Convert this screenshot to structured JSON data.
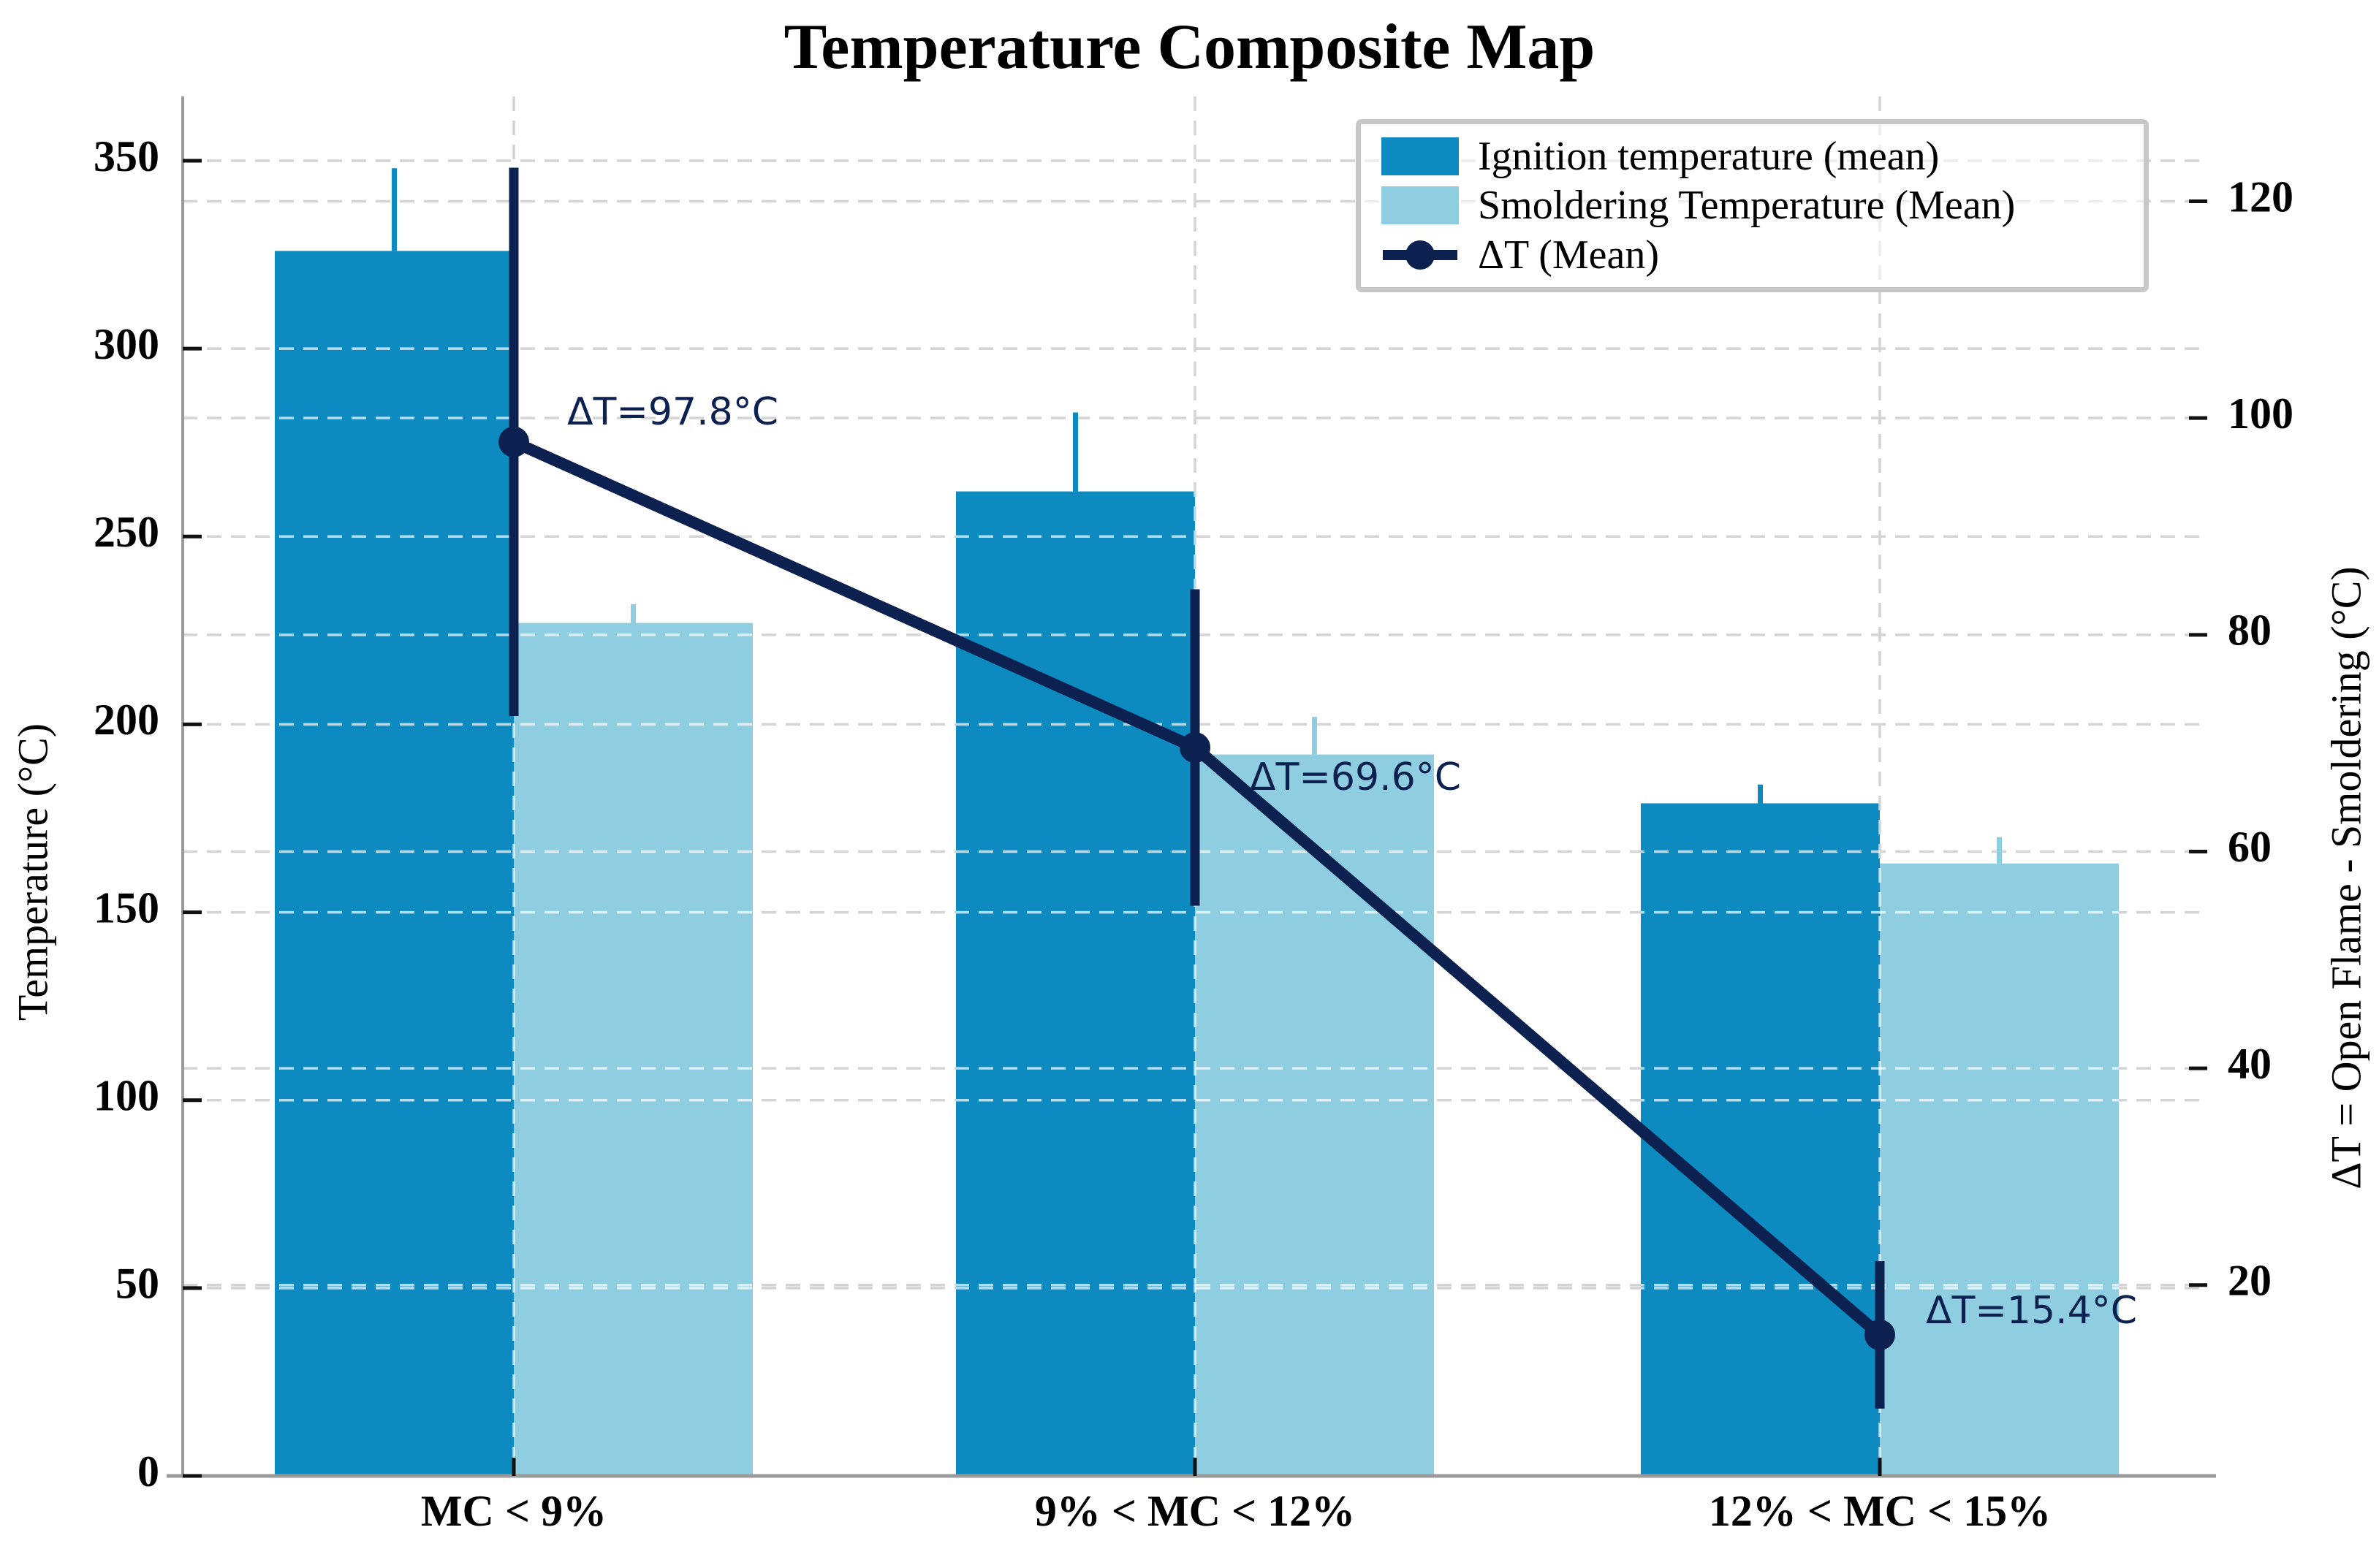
{
  "title": "Temperature Composite Map",
  "chart_data": {
    "type": "bar",
    "title": "Temperature Composite Map",
    "categories": [
      "MC < 9%",
      "9% < MC < 12%",
      "12% < MC < 15%"
    ],
    "series": [
      {
        "name": "Ignition temperature (mean)",
        "kind": "bar",
        "axis": "left",
        "color": "#0d8bc1",
        "values": [
          326,
          262,
          179
        ],
        "errors_plus": [
          22,
          21,
          5
        ]
      },
      {
        "name": "Smoldering Temperature (Mean)",
        "kind": "bar",
        "axis": "left",
        "color": "#8fcee1",
        "values": [
          227,
          192,
          163
        ],
        "errors_plus": [
          5,
          10,
          7
        ]
      },
      {
        "name": "ΔT (Mean)",
        "kind": "line",
        "axis": "right",
        "color": "#0c2150",
        "values": [
          97.8,
          69.6,
          15.4
        ],
        "errors": [
          25.3,
          14.6,
          6.8
        ]
      }
    ],
    "annotations": [
      "ΔT=97.8°C",
      "ΔT=69.6°C",
      "ΔT=15.4°C"
    ],
    "xlabel": "",
    "ylabel_left": "Temperature (°C)",
    "ylabel_right": "ΔT = Open Flame - Smoldering (°C)",
    "yticks_left": [
      0,
      50,
      100,
      150,
      200,
      250,
      300,
      350
    ],
    "yticks_right": [
      20,
      40,
      60,
      80,
      100,
      120
    ],
    "ylim_left": [
      0,
      367
    ],
    "grid": true,
    "legend_position": "upper right"
  },
  "colors": {
    "ignition_bar": "#0d8bc1",
    "smoldering_bar": "#8fcee1",
    "delta_line": "#0c2150",
    "grid_gray": "#d4d4d4",
    "grid_over_bars": "rgba(255,255,255,0.7)",
    "spine_gray": "#9a9a9a",
    "tick_black": "#111111"
  }
}
